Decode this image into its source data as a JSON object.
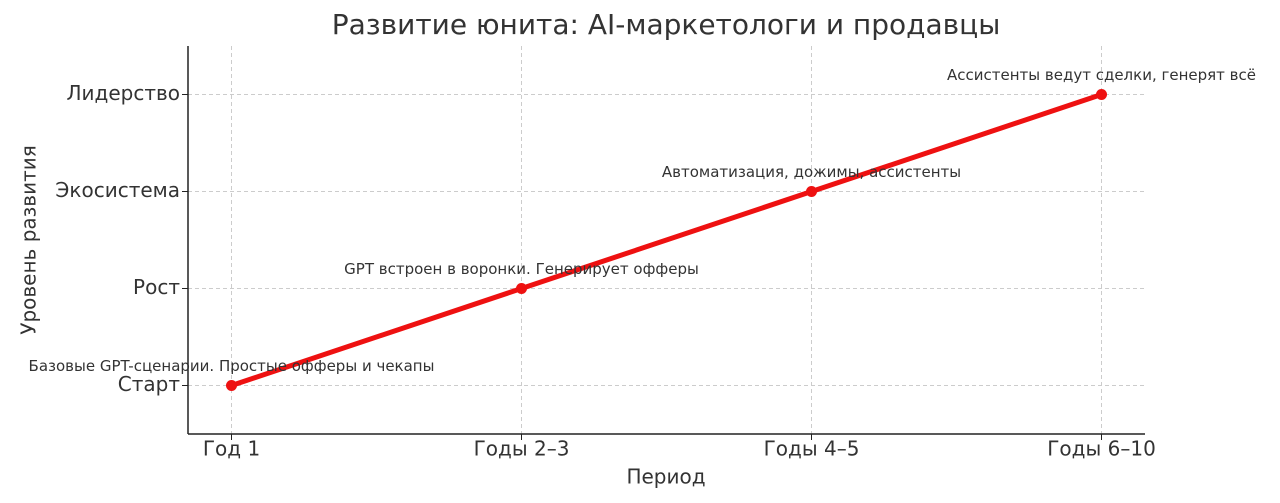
{
  "chart_data": {
    "type": "line",
    "title": "Развитие юнита: AI-маркетологи и продавцы",
    "x_label": "Период",
    "y_label": "Уровень развития",
    "categories": [
      "Год 1",
      "Годы 2–3",
      "Годы 4–5",
      "Годы 6–10"
    ],
    "values": [
      0,
      1,
      2,
      3
    ],
    "color": "#ee1111",
    "annotations": [
      "Базовые GPT-сценарии. Простые офферы и чекапы",
      "GPT встроен в воронки. Генерирует офферы",
      "Автоматизация, дожимы, ассистенты",
      "Ассистенты ведут сделки, генерят всё"
    ],
    "ylim": [
      -0.5,
      3.5
    ],
    "yticks": [
      {
        "value": 0,
        "label": "Старт"
      },
      {
        "value": 1,
        "label": "Рост"
      },
      {
        "value": 2,
        "label": "Экосистема"
      },
      {
        "value": 3,
        "label": "Лидерство"
      }
    ],
    "grid": true
  }
}
